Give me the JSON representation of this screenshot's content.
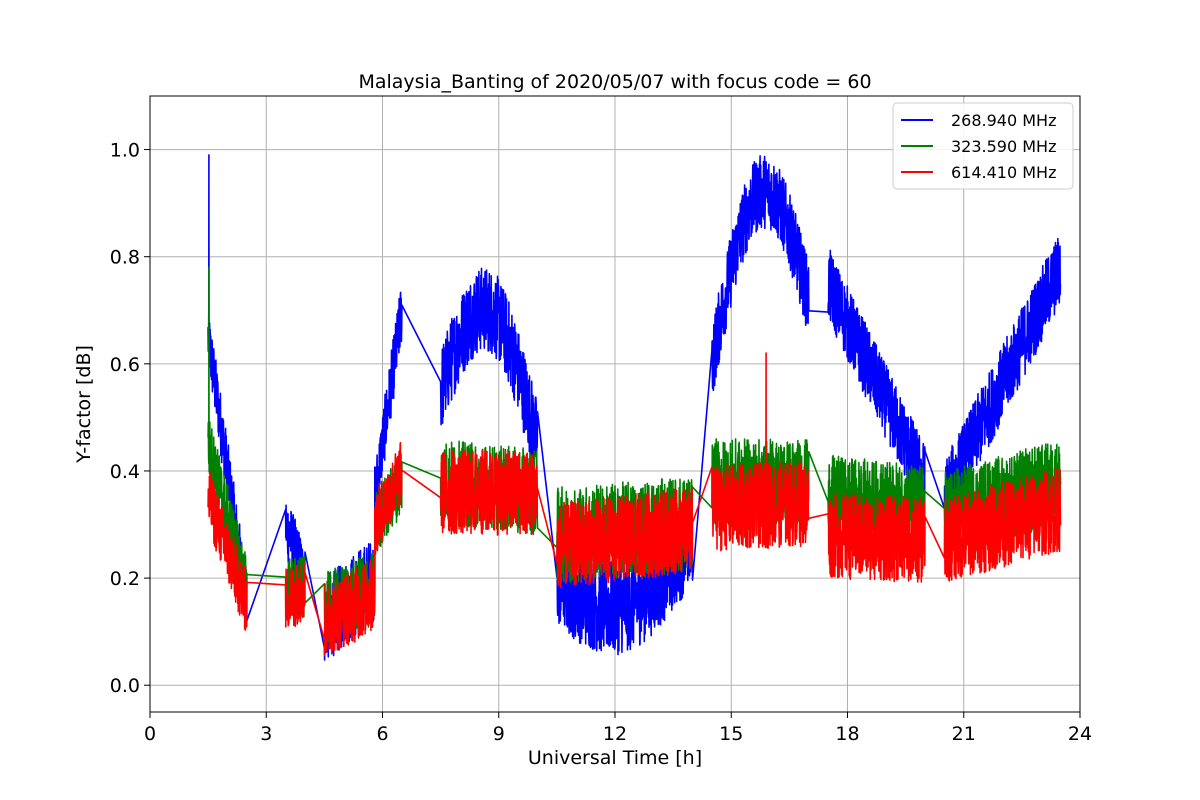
{
  "chart_data": {
    "type": "line",
    "title": "Malaysia_Banting of 2020/05/07 with focus code = 60",
    "xlabel": "Universal Time [h]",
    "ylabel": "Y-factor [dB]",
    "xlim": [
      0,
      24
    ],
    "ylim": [
      -0.05,
      1.1
    ],
    "xticks": [
      0,
      3,
      6,
      9,
      12,
      15,
      18,
      21,
      24
    ],
    "xtick_labels": [
      "0",
      "3",
      "6",
      "9",
      "12",
      "15",
      "18",
      "21",
      "24"
    ],
    "yticks": [
      0.0,
      0.2,
      0.4,
      0.6,
      0.8,
      1.0
    ],
    "ytick_labels": [
      "0.0",
      "0.2",
      "0.4",
      "0.6",
      "0.8",
      "1.0"
    ],
    "grid": true,
    "legend_position": "top-right",
    "series": [
      {
        "name": "268.940 MHz",
        "color": "#0000ff",
        "segments": [
          {
            "x_start": 1.5,
            "x_end": 2.5,
            "level_start": 0.65,
            "level_end": 0.15,
            "amplitude": 0.06
          },
          {
            "x_start": 3.5,
            "x_end": 4.0,
            "level_start": 0.3,
            "level_end": 0.2,
            "amplitude": 0.06
          },
          {
            "x_start": 4.5,
            "x_end": 5.8,
            "level_start": 0.12,
            "level_end": 0.2,
            "amplitude": 0.08
          },
          {
            "x_start": 5.8,
            "x_end": 6.5,
            "level_start": 0.35,
            "level_end": 0.7,
            "amplitude": 0.06
          },
          {
            "x_start": 7.5,
            "x_end": 10.0,
            "level_start": 0.55,
            "level_end": 0.45,
            "peak": 0.7,
            "amplitude": 0.08
          },
          {
            "x_start": 10.5,
            "x_end": 14.0,
            "level_start": 0.2,
            "level_end": 0.28,
            "dip": 0.15,
            "amplitude": 0.09
          },
          {
            "x_start": 14.5,
            "x_end": 17.0,
            "level_start": 0.6,
            "level_end": 0.72,
            "peak": 0.92,
            "amplitude": 0.07
          },
          {
            "x_start": 17.5,
            "x_end": 20.0,
            "level_start": 0.75,
            "level_end": 0.38,
            "amplitude": 0.07
          },
          {
            "x_start": 20.5,
            "x_end": 23.5,
            "level_start": 0.35,
            "level_end": 0.78,
            "amplitude": 0.07
          }
        ],
        "spike": {
          "x": 1.52,
          "y": 0.99
        }
      },
      {
        "name": "323.590 MHz",
        "color": "#008000",
        "segments": [
          {
            "x_start": 1.5,
            "x_end": 2.5,
            "level_start": 0.45,
            "level_end": 0.18,
            "amplitude": 0.06
          },
          {
            "x_start": 3.5,
            "x_end": 4.0,
            "level_start": 0.18,
            "level_end": 0.18,
            "amplitude": 0.06
          },
          {
            "x_start": 4.5,
            "x_end": 5.8,
            "level_start": 0.14,
            "level_end": 0.18,
            "amplitude": 0.07
          },
          {
            "x_start": 5.8,
            "x_end": 6.5,
            "level_start": 0.3,
            "level_end": 0.38,
            "amplitude": 0.06
          },
          {
            "x_start": 7.5,
            "x_end": 10.0,
            "level_start": 0.38,
            "level_end": 0.36,
            "amplitude": 0.08
          },
          {
            "x_start": 10.5,
            "x_end": 14.0,
            "level_start": 0.28,
            "level_end": 0.3,
            "amplitude": 0.09
          },
          {
            "x_start": 14.5,
            "x_end": 17.0,
            "level_start": 0.38,
            "level_end": 0.38,
            "amplitude": 0.08
          },
          {
            "x_start": 17.5,
            "x_end": 20.0,
            "level_start": 0.35,
            "level_end": 0.33,
            "amplitude": 0.08
          },
          {
            "x_start": 20.5,
            "x_end": 23.5,
            "level_start": 0.32,
            "level_end": 0.38,
            "amplitude": 0.08
          }
        ],
        "spike": {
          "x": 1.52,
          "y": 0.78
        }
      },
      {
        "name": "614.410 MHz",
        "color": "#ff0000",
        "segments": [
          {
            "x_start": 1.5,
            "x_end": 2.5,
            "level_start": 0.35,
            "level_end": 0.15,
            "amplitude": 0.06
          },
          {
            "x_start": 3.5,
            "x_end": 4.0,
            "level_start": 0.16,
            "level_end": 0.18,
            "amplitude": 0.06
          },
          {
            "x_start": 4.5,
            "x_end": 5.8,
            "level_start": 0.12,
            "level_end": 0.17,
            "amplitude": 0.07
          },
          {
            "x_start": 5.8,
            "x_end": 6.5,
            "level_start": 0.3,
            "level_end": 0.4,
            "amplitude": 0.06
          },
          {
            "x_start": 7.5,
            "x_end": 10.0,
            "level_start": 0.36,
            "level_end": 0.36,
            "amplitude": 0.08
          },
          {
            "x_start": 10.5,
            "x_end": 14.0,
            "level_start": 0.26,
            "level_end": 0.29,
            "amplitude": 0.08
          },
          {
            "x_start": 14.5,
            "x_end": 17.0,
            "level_start": 0.33,
            "level_end": 0.34,
            "amplitude": 0.08
          },
          {
            "x_start": 17.5,
            "x_end": 20.0,
            "level_start": 0.28,
            "level_end": 0.27,
            "amplitude": 0.08
          },
          {
            "x_start": 20.5,
            "x_end": 23.5,
            "level_start": 0.27,
            "level_end": 0.33,
            "amplitude": 0.08
          }
        ],
        "spike": {
          "x": 15.9,
          "y": 0.62
        }
      }
    ]
  }
}
